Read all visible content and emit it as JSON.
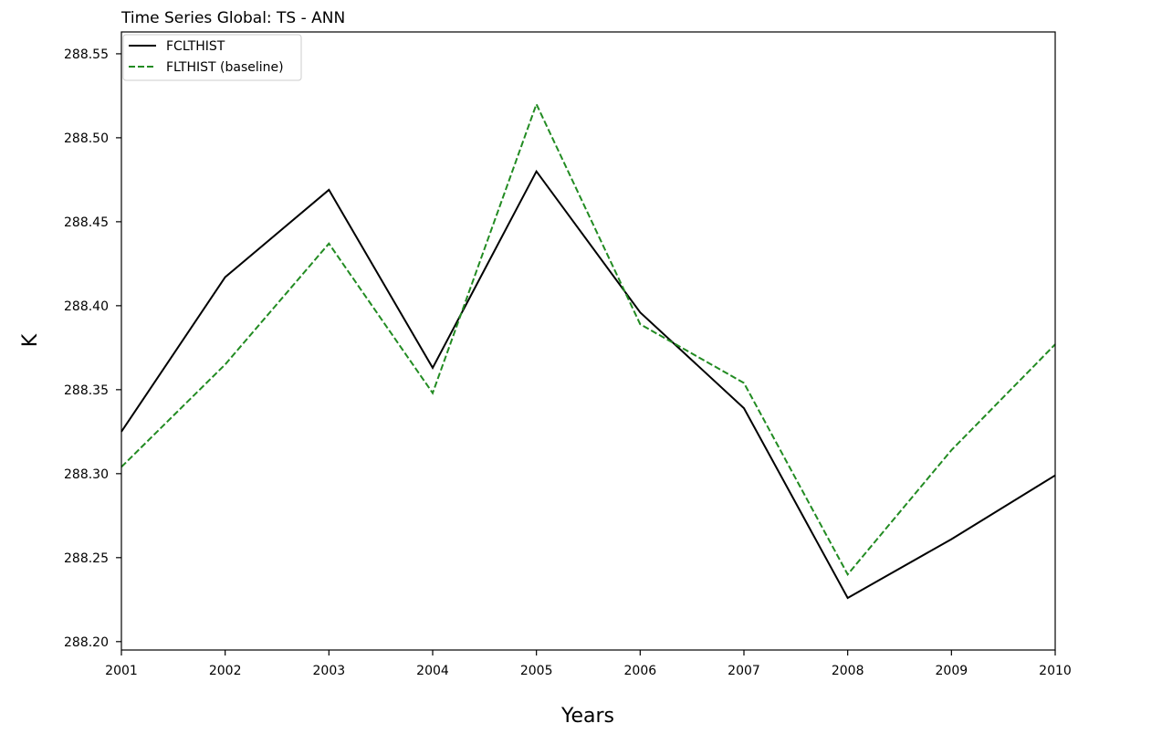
{
  "chart_data": {
    "type": "line",
    "title": "Time Series Global: TS - ANN",
    "xlabel": "Years",
    "ylabel": "K",
    "x": [
      2001,
      2002,
      2003,
      2004,
      2005,
      2006,
      2007,
      2008,
      2009,
      2010
    ],
    "xlim": [
      2001,
      2010
    ],
    "ylim": [
      288.195,
      288.563
    ],
    "yticks": [
      288.2,
      288.25,
      288.3,
      288.35,
      288.4,
      288.45,
      288.5,
      288.55
    ],
    "ytick_labels": [
      "288.20",
      "288.25",
      "288.30",
      "288.35",
      "288.40",
      "288.45",
      "288.50",
      "288.55"
    ],
    "xtick_labels": [
      "2001",
      "2002",
      "2003",
      "2004",
      "2005",
      "2006",
      "2007",
      "2008",
      "2009",
      "2010"
    ],
    "grid": false,
    "legend_position": "top-left",
    "series": [
      {
        "name": "FCLTHIST",
        "color": "#000000",
        "style": "solid",
        "values": [
          288.325,
          288.417,
          288.469,
          288.363,
          288.48,
          288.396,
          288.339,
          288.226,
          288.261,
          288.299
        ]
      },
      {
        "name": "FLTHIST (baseline)",
        "color": "#228B22",
        "style": "dashed",
        "values": [
          288.304,
          288.365,
          288.437,
          288.348,
          288.52,
          288.389,
          288.354,
          288.24,
          288.314,
          288.377
        ]
      }
    ]
  }
}
